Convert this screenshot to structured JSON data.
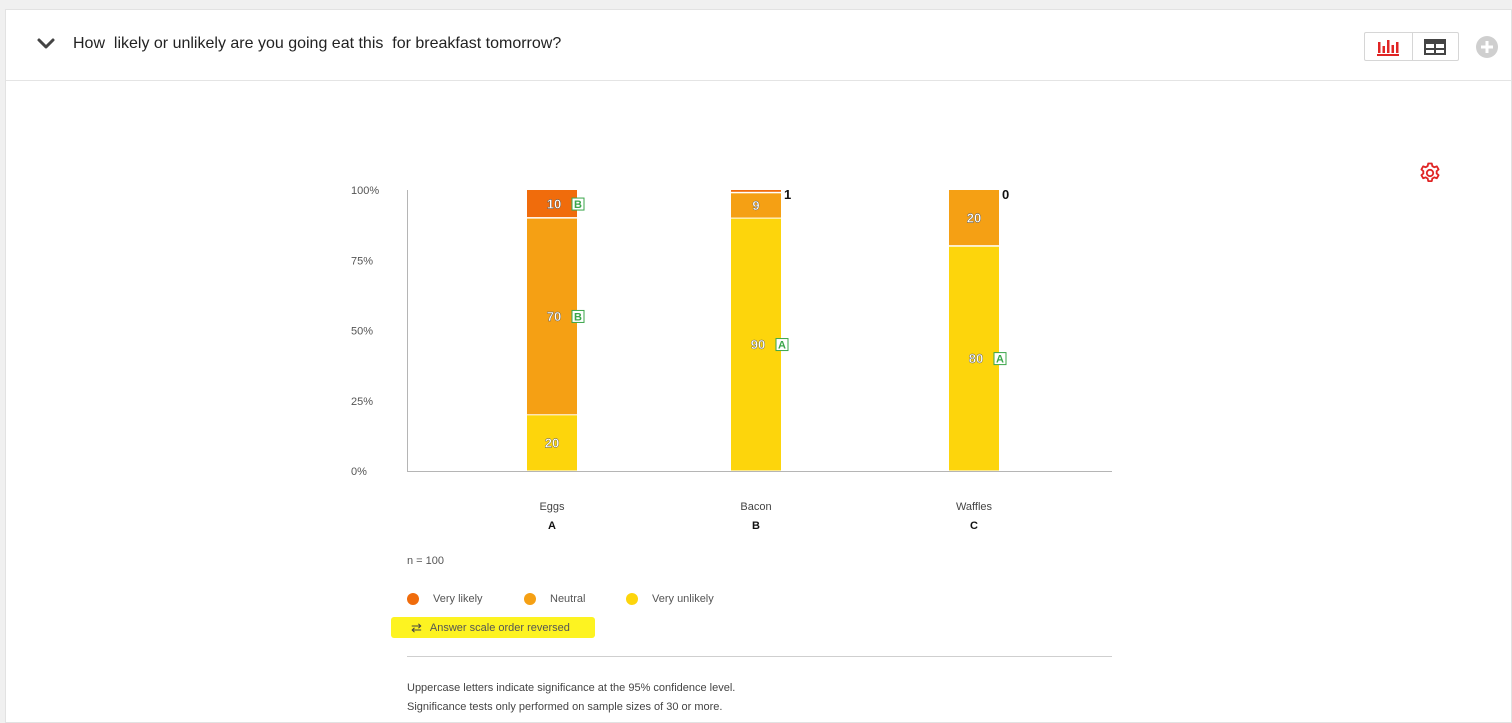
{
  "header": {
    "question": "How  likely or unlikely are you going eat this  for breakfast tomorrow?",
    "collapse_icon": "chevron-down-icon",
    "view_icons": [
      "bar-chart-icon",
      "table-icon"
    ],
    "add_icon": "plus-circle-icon"
  },
  "settings_icon": "gear-icon",
  "colors": {
    "very_likely": "#f06c0c",
    "neutral": "#f5a014",
    "very_unlikely": "#fdd50c",
    "sig_letter": "#3aa64a",
    "accent_red": "#e02525"
  },
  "chart_data": {
    "type": "bar",
    "stacked": true,
    "categories": [
      "Eggs",
      "Bacon",
      "Waffles"
    ],
    "category_letters": [
      "A",
      "B",
      "C"
    ],
    "ylim": [
      0,
      100
    ],
    "yticks": [
      "0%",
      "25%",
      "50%",
      "75%",
      "100%"
    ],
    "series": [
      {
        "name": "Very unlikely",
        "values": [
          20,
          90,
          80
        ],
        "sig": [
          "",
          "A",
          "A"
        ]
      },
      {
        "name": "Neutral",
        "values": [
          70,
          9,
          20
        ],
        "sig": [
          "B",
          "",
          ""
        ]
      },
      {
        "name": "Very likely",
        "values": [
          10,
          1,
          0
        ],
        "sig": [
          "B",
          "",
          ""
        ]
      }
    ],
    "legend_order": [
      "Very likely",
      "Neutral",
      "Very unlikely"
    ]
  },
  "sample_size": "n = 100",
  "legend": {
    "very_likely": "Very likely",
    "neutral": "Neutral",
    "very_unlikely": "Very unlikely"
  },
  "reversed_note": "Answer scale order reversed",
  "footnotes": [
    "Uppercase letters indicate significance at the 95% confidence level.",
    "Significance tests only performed on sample sizes of 30 or more."
  ]
}
